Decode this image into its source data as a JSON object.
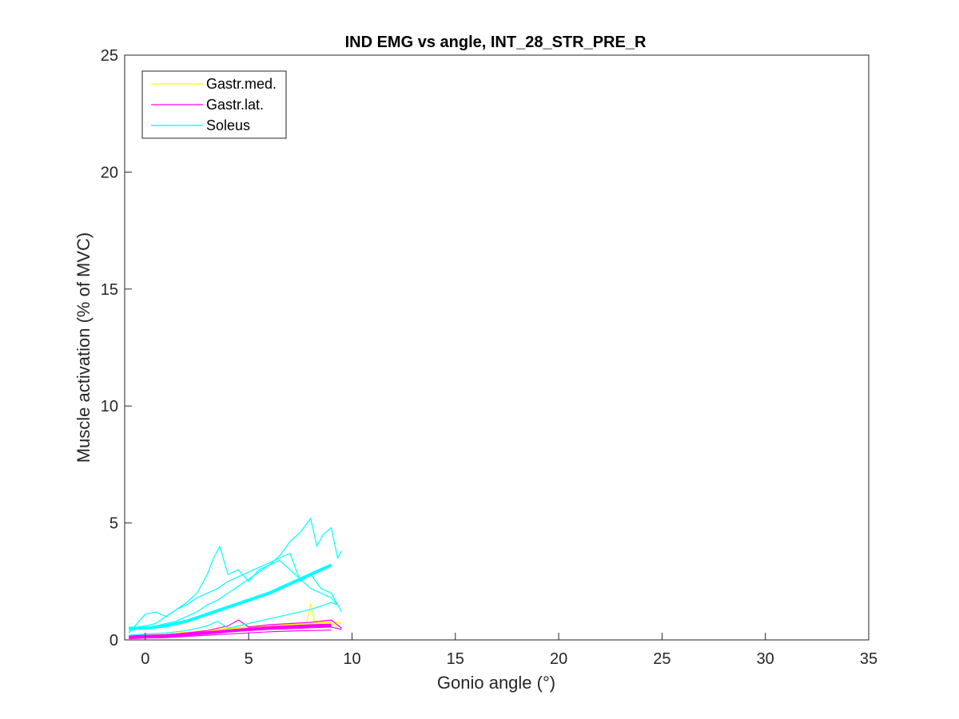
{
  "chart_data": {
    "type": "line",
    "title": "IND EMG vs angle, INT_28_STR_PRE_R",
    "xlabel": "Gonio angle (°)",
    "ylabel": "Muscle activation (% of MVC)",
    "xlim": [
      -1,
      35
    ],
    "ylim": [
      0,
      25
    ],
    "xticks": [
      0,
      5,
      10,
      15,
      20,
      25,
      30,
      35
    ],
    "yticks": [
      0,
      5,
      10,
      15,
      20,
      25
    ],
    "grid": false,
    "legend_position": "top-left",
    "legend": [
      {
        "name": "Gastr.med.",
        "color": "#FFFF00"
      },
      {
        "name": "Gastr.lat.",
        "color": "#FF00FF"
      },
      {
        "name": "Soleus",
        "color": "#00FFFF"
      }
    ],
    "series": [
      {
        "name": "Gastr.med.",
        "role": "trial",
        "color": "#FFFF00",
        "x": [
          -0.8,
          0,
          1,
          2,
          3,
          4,
          5,
          6,
          7,
          7.8,
          8,
          8.2,
          9,
          9.5
        ],
        "y": [
          0.1,
          0.12,
          0.18,
          0.25,
          0.35,
          0.5,
          0.55,
          0.6,
          0.65,
          0.7,
          1.55,
          0.75,
          0.8,
          0.7
        ]
      },
      {
        "name": "Gastr.med.",
        "role": "trial",
        "color": "#FFFF00",
        "x": [
          -0.8,
          0,
          1,
          2,
          3,
          4,
          5,
          6,
          7,
          8,
          9,
          9.3
        ],
        "y": [
          0.05,
          0.08,
          0.12,
          0.2,
          0.3,
          0.4,
          0.45,
          0.5,
          0.6,
          0.6,
          0.7,
          0.6
        ]
      },
      {
        "name": "Gastr.med.",
        "role": "mean",
        "color": "#FFFF00",
        "x": [
          -0.8,
          0,
          1,
          2,
          3,
          4,
          5,
          6,
          7,
          8,
          9
        ],
        "y": [
          0.12,
          0.15,
          0.2,
          0.28,
          0.36,
          0.45,
          0.52,
          0.58,
          0.62,
          0.66,
          0.7
        ]
      },
      {
        "name": "Gastr.lat.",
        "role": "trial",
        "color": "#FF00FF",
        "x": [
          -0.8,
          0,
          1,
          2,
          3,
          4,
          4.5,
          5,
          6,
          7,
          8,
          9,
          9.5
        ],
        "y": [
          0.15,
          0.18,
          0.22,
          0.3,
          0.4,
          0.6,
          0.85,
          0.55,
          0.65,
          0.7,
          0.75,
          0.85,
          0.5
        ]
      },
      {
        "name": "Gastr.lat.",
        "role": "trial",
        "color": "#FF00FF",
        "x": [
          -0.8,
          0,
          1,
          2,
          3,
          4,
          5,
          6,
          7,
          8,
          9,
          9.5
        ],
        "y": [
          0.1,
          0.12,
          0.15,
          0.2,
          0.28,
          0.35,
          0.4,
          0.45,
          0.48,
          0.52,
          0.55,
          0.45
        ]
      },
      {
        "name": "Gastr.lat.",
        "role": "trial",
        "color": "#FF00FF",
        "x": [
          -0.8,
          0,
          1,
          2,
          3,
          4,
          5,
          6,
          7,
          8,
          9
        ],
        "y": [
          0.05,
          0.08,
          0.1,
          0.15,
          0.2,
          0.25,
          0.3,
          0.35,
          0.38,
          0.4,
          0.42
        ]
      },
      {
        "name": "Gastr.lat.",
        "role": "mean",
        "color": "#FF00FF",
        "x": [
          -0.8,
          0,
          1,
          2,
          3,
          4,
          5,
          6,
          7,
          8,
          9
        ],
        "y": [
          0.15,
          0.15,
          0.18,
          0.24,
          0.3,
          0.38,
          0.45,
          0.52,
          0.56,
          0.6,
          0.62
        ]
      },
      {
        "name": "Soleus",
        "role": "trial",
        "color": "#00FFFF",
        "x": [
          -0.8,
          0,
          0.5,
          1,
          1.5,
          2,
          2.5,
          3,
          3.3,
          3.6,
          4,
          4.5,
          5,
          5.5,
          6,
          6.5,
          7,
          7.5,
          8,
          8.3,
          8.6,
          9,
          9.3,
          9.5
        ],
        "y": [
          0.5,
          0.6,
          0.7,
          1.0,
          1.3,
          1.6,
          2.0,
          2.8,
          3.5,
          4.0,
          2.8,
          3.0,
          2.5,
          3.0,
          3.2,
          3.6,
          4.2,
          4.6,
          5.2,
          4.0,
          4.5,
          4.8,
          3.5,
          3.8
        ]
      },
      {
        "name": "Soleus",
        "role": "trial",
        "color": "#00FFFF",
        "x": [
          -0.8,
          0,
          0.5,
          1,
          1.5,
          2,
          2.5,
          3,
          3.5,
          4,
          4.5,
          5,
          5.5,
          6,
          6.5,
          7,
          7.5,
          8,
          8.5,
          9,
          9.3
        ],
        "y": [
          0.4,
          0.5,
          0.6,
          0.7,
          0.8,
          1.0,
          1.2,
          1.5,
          1.7,
          2.0,
          2.3,
          2.6,
          2.9,
          3.2,
          3.4,
          3.0,
          2.6,
          2.2,
          2.0,
          1.8,
          1.5
        ]
      },
      {
        "name": "Soleus",
        "role": "trial",
        "color": "#00FFFF",
        "x": [
          -0.8,
          0,
          0.5,
          1,
          1.5,
          2,
          2.5,
          3,
          3.5,
          4,
          4.5,
          5,
          5.5,
          6,
          6.5,
          7,
          7.5,
          8,
          8.5,
          9,
          9.5
        ],
        "y": [
          0.3,
          1.1,
          1.2,
          1.0,
          1.3,
          1.5,
          1.8,
          2.0,
          2.2,
          2.5,
          2.7,
          2.9,
          3.1,
          3.3,
          3.5,
          3.7,
          2.5,
          2.8,
          2.2,
          2.0,
          1.2
        ]
      },
      {
        "name": "Soleus",
        "role": "trial",
        "color": "#00FFFF",
        "x": [
          -0.8,
          0,
          1,
          2,
          3,
          3.5,
          4,
          5,
          6,
          7,
          8,
          9,
          9.3
        ],
        "y": [
          0.2,
          0.25,
          0.3,
          0.4,
          0.6,
          0.8,
          0.5,
          0.7,
          0.9,
          1.1,
          1.3,
          1.6,
          1.5
        ]
      },
      {
        "name": "Soleus",
        "role": "mean",
        "color": "#00FFFF",
        "x": [
          -0.8,
          0,
          1,
          2,
          3,
          4,
          5,
          6,
          7,
          8,
          9
        ],
        "y": [
          0.5,
          0.5,
          0.6,
          0.8,
          1.1,
          1.4,
          1.7,
          2.0,
          2.4,
          2.8,
          3.2
        ]
      }
    ]
  }
}
